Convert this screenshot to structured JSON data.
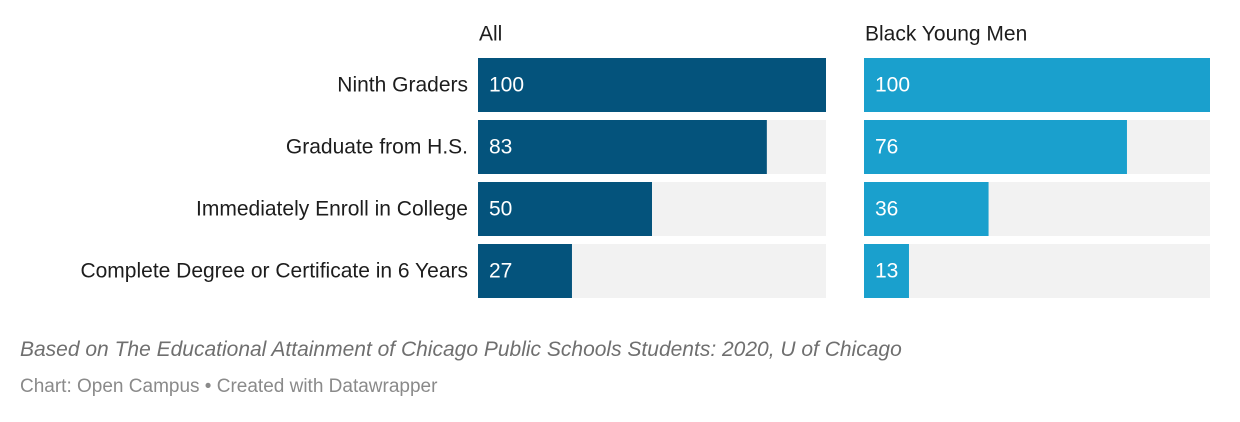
{
  "chart_data": {
    "type": "bar",
    "orientation": "horizontal",
    "categories": [
      "Ninth Graders",
      "Graduate from H.S.",
      "Immediately Enroll in College",
      "Complete Degree or Certificate in 6 Years"
    ],
    "series": [
      {
        "name": "All",
        "values": [
          100,
          83,
          50,
          27
        ],
        "color": "#04537c"
      },
      {
        "name": "Black Young Men",
        "values": [
          100,
          76,
          36,
          13
        ],
        "color": "#1aa0cd"
      }
    ],
    "xlim": [
      0,
      100
    ],
    "background_bar_color": "#f2f2f2"
  },
  "notes": "Based on The Educational Attainment of Chicago Public Schools Students: 2020, U of Chicago",
  "byline": "Chart: Open Campus • Created with Datawrapper"
}
